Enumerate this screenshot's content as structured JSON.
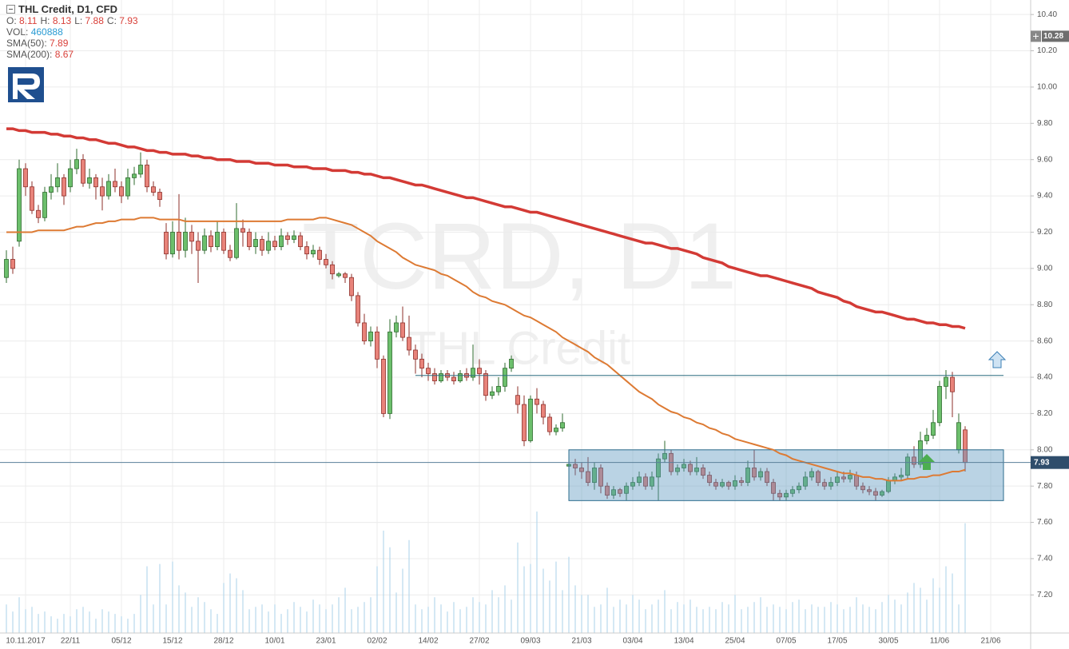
{
  "chart_data": {
    "type": "candlestick",
    "title": "THL Credit,  D1,  CFD",
    "watermark": {
      "symbol": "TCRD, D1",
      "name": "THL Credit"
    },
    "legend": {
      "open": "O:",
      "high": "H:",
      "low": "L:",
      "close": "C:",
      "volume": "VOL:"
    },
    "up_color": "#6cbf6c",
    "down_color": "#e8837a",
    "volume_color": "#a9d2ea",
    "grid": true,
    "ylim": [
      6.99,
      10.48
    ],
    "yticks": [
      {
        "value": 7.2,
        "label": "7.20"
      },
      {
        "value": 7.4,
        "label": "7.40"
      },
      {
        "value": 7.6,
        "label": "7.60"
      },
      {
        "value": 7.8,
        "label": "7.80"
      },
      {
        "value": 8.0,
        "label": "8.00"
      },
      {
        "value": 8.2,
        "label": "8.20"
      },
      {
        "value": 8.4,
        "label": "8.40"
      },
      {
        "value": 8.6,
        "label": "8.60"
      },
      {
        "value": 8.8,
        "label": "8.80"
      },
      {
        "value": 9.0,
        "label": "9.00"
      },
      {
        "value": 9.2,
        "label": "9.20"
      },
      {
        "value": 9.4,
        "label": "9.40"
      },
      {
        "value": 9.6,
        "label": "9.60"
      },
      {
        "value": 9.8,
        "label": "9.80"
      },
      {
        "value": 10.0,
        "label": "10.00"
      },
      {
        "value": 10.2,
        "label": "10.20"
      },
      {
        "value": 10.4,
        "label": "10.40"
      }
    ],
    "crosshair_price": 10.28,
    "resistance": 8.41,
    "range_box": {
      "top": 8.0,
      "bottom": 7.72
    },
    "categories": [
      null,
      null,
      null,
      "10.11.2017",
      null,
      null,
      null,
      null,
      null,
      null,
      "22/11",
      null,
      null,
      null,
      null,
      null,
      null,
      null,
      "05/12",
      null,
      null,
      null,
      null,
      null,
      null,
      null,
      "15/12",
      null,
      null,
      null,
      null,
      null,
      null,
      null,
      "28/12",
      null,
      null,
      null,
      null,
      null,
      null,
      null,
      "10/01",
      null,
      null,
      null,
      null,
      null,
      null,
      null,
      "23/01",
      null,
      null,
      null,
      null,
      null,
      null,
      null,
      "02/02",
      null,
      null,
      null,
      null,
      null,
      null,
      null,
      "14/02",
      null,
      null,
      null,
      null,
      null,
      null,
      null,
      "27/02",
      null,
      null,
      null,
      null,
      null,
      null,
      null,
      "09/03",
      null,
      null,
      null,
      null,
      null,
      null,
      null,
      "21/03",
      null,
      null,
      null,
      null,
      null,
      null,
      null,
      "03/04",
      null,
      null,
      null,
      null,
      null,
      null,
      null,
      "13/04",
      null,
      null,
      null,
      null,
      null,
      null,
      null,
      "25/04",
      null,
      null,
      null,
      null,
      null,
      null,
      null,
      "07/05",
      null,
      null,
      null,
      null,
      null,
      null,
      null,
      "17/05",
      null,
      null,
      null,
      null,
      null,
      null,
      null,
      "30/05",
      null,
      null,
      null,
      null,
      null,
      null,
      null,
      "11/06",
      null,
      null,
      null,
      null,
      null,
      null,
      null,
      "21/06"
    ],
    "open": [
      8.95,
      9.05,
      9.15,
      9.55,
      9.45,
      9.32,
      9.28,
      9.42,
      9.45,
      9.5,
      9.45,
      9.55,
      9.6,
      9.47,
      9.5,
      9.45,
      9.4,
      9.48,
      9.45,
      9.4,
      9.5,
      9.52,
      9.57,
      9.45,
      9.42,
      9.2,
      9.08,
      9.2,
      9.1,
      9.2,
      9.15,
      9.1,
      9.18,
      9.12,
      9.2,
      9.1,
      9.06,
      9.22,
      9.2,
      9.12,
      9.16,
      9.1,
      9.15,
      9.12,
      9.18,
      9.16,
      9.18,
      9.12,
      9.08,
      9.1,
      9.05,
      9.02,
      8.96,
      8.97,
      8.95,
      8.85,
      8.7,
      8.6,
      8.65,
      8.5,
      8.2,
      8.65,
      8.7,
      8.62,
      8.55,
      8.5,
      8.45,
      8.42,
      8.38,
      8.42,
      8.4,
      8.38,
      8.42,
      8.4,
      8.45,
      8.42,
      8.3,
      8.32,
      8.35,
      8.45,
      8.3,
      8.25,
      8.05,
      8.28,
      8.25,
      8.18,
      8.1,
      8.12,
      7.91,
      7.92,
      7.9,
      7.88,
      7.82,
      7.9,
      7.8,
      7.75,
      7.78,
      7.76,
      7.8,
      7.82,
      7.85,
      7.8,
      7.85,
      7.95,
      7.98,
      7.88,
      7.9,
      7.92,
      7.88,
      7.9,
      7.86,
      7.82,
      7.8,
      7.82,
      7.8,
      7.83,
      7.82,
      7.9,
      7.85,
      7.88,
      7.82,
      7.76,
      7.74,
      7.76,
      7.78,
      7.8,
      7.85,
      7.88,
      7.82,
      7.8,
      7.82,
      7.85,
      7.84,
      7.86,
      7.8,
      7.78,
      7.77,
      7.75,
      7.77,
      7.83,
      7.85,
      7.86,
      7.96,
      7.92,
      8.05,
      8.08,
      8.15,
      8.35,
      8.4,
      8.0,
      8.11,
      null,
      null,
      null,
      null
    ],
    "high": [
      9.1,
      9.12,
      9.6,
      9.58,
      9.48,
      9.35,
      9.45,
      9.52,
      9.58,
      9.52,
      9.6,
      9.66,
      9.63,
      9.55,
      9.52,
      9.5,
      9.52,
      9.55,
      9.48,
      9.55,
      9.56,
      9.64,
      9.6,
      9.48,
      9.44,
      9.25,
      9.26,
      9.41,
      9.28,
      9.24,
      9.2,
      9.22,
      9.21,
      9.26,
      9.22,
      9.13,
      9.36,
      9.27,
      9.22,
      9.2,
      9.18,
      9.2,
      9.18,
      9.22,
      9.2,
      9.21,
      9.2,
      9.15,
      9.13,
      9.12,
      9.08,
      9.04,
      8.98,
      8.98,
      8.97,
      8.87,
      8.75,
      8.68,
      8.68,
      8.52,
      8.72,
      8.74,
      8.79,
      8.74,
      8.58,
      8.53,
      8.48,
      8.45,
      8.44,
      8.44,
      8.43,
      8.44,
      8.45,
      8.58,
      8.5,
      8.44,
      8.35,
      8.4,
      8.48,
      8.52,
      8.35,
      8.3,
      8.3,
      8.34,
      8.27,
      8.2,
      8.14,
      8.2,
      7.93,
      7.95,
      7.93,
      7.96,
      7.93,
      7.92,
      7.82,
      7.8,
      7.79,
      7.82,
      7.85,
      7.88,
      7.87,
      7.88,
      7.98,
      8.05,
      8.0,
      7.92,
      7.95,
      7.94,
      7.96,
      7.92,
      7.88,
      7.84,
      7.84,
      7.83,
      7.86,
      7.85,
      7.94,
      8.0,
      7.9,
      7.9,
      7.84,
      7.78,
      7.78,
      7.8,
      7.82,
      7.88,
      7.9,
      7.89,
      7.84,
      7.85,
      7.88,
      7.88,
      7.89,
      7.88,
      7.82,
      7.8,
      7.79,
      7.78,
      7.85,
      7.87,
      7.9,
      7.98,
      8.02,
      8.1,
      8.12,
      8.22,
      8.38,
      8.44,
      8.43,
      8.2,
      8.13,
      null,
      null,
      null,
      null
    ],
    "low": [
      8.92,
      8.97,
      9.12,
      9.4,
      9.3,
      9.25,
      9.26,
      9.38,
      9.42,
      9.35,
      9.42,
      9.52,
      9.45,
      9.44,
      9.38,
      9.32,
      9.38,
      9.42,
      9.36,
      9.38,
      9.46,
      9.5,
      9.42,
      9.4,
      9.34,
      9.05,
      9.06,
      9.05,
      9.06,
      9.08,
      8.92,
      9.08,
      9.09,
      9.1,
      9.08,
      9.04,
      9.05,
      9.12,
      9.1,
      9.08,
      9.07,
      9.08,
      9.1,
      9.1,
      9.13,
      9.14,
      9.1,
      9.05,
      9.06,
      9.02,
      9.0,
      8.94,
      8.95,
      8.92,
      8.82,
      8.68,
      8.58,
      8.57,
      8.45,
      8.18,
      8.17,
      8.62,
      8.6,
      8.52,
      8.42,
      8.4,
      8.38,
      8.36,
      8.37,
      8.38,
      8.36,
      8.37,
      8.38,
      8.38,
      8.36,
      8.27,
      8.28,
      8.3,
      8.32,
      8.43,
      8.2,
      8.02,
      8.04,
      8.2,
      8.14,
      8.08,
      8.08,
      8.1,
      7.9,
      7.86,
      7.84,
      7.8,
      7.78,
      7.76,
      7.73,
      7.73,
      7.74,
      7.72,
      7.78,
      7.8,
      7.78,
      7.78,
      7.72,
      7.93,
      7.86,
      7.86,
      7.88,
      7.86,
      7.86,
      7.84,
      7.8,
      7.78,
      7.79,
      7.78,
      7.78,
      7.8,
      7.8,
      7.83,
      7.83,
      7.8,
      7.72,
      7.72,
      7.72,
      7.74,
      7.76,
      7.78,
      7.83,
      7.8,
      7.78,
      7.78,
      7.8,
      7.82,
      7.82,
      7.78,
      7.76,
      7.75,
      7.72,
      7.74,
      7.76,
      7.81,
      7.83,
      7.84,
      7.9,
      7.9,
      8.03,
      8.06,
      8.13,
      8.28,
      8.18,
      7.98,
      7.88,
      null,
      null,
      null,
      null
    ],
    "close": [
      9.05,
      9.0,
      9.55,
      9.45,
      9.32,
      9.28,
      9.42,
      9.45,
      9.5,
      9.4,
      9.55,
      9.6,
      9.47,
      9.5,
      9.45,
      9.4,
      9.48,
      9.45,
      9.4,
      9.5,
      9.52,
      9.57,
      9.45,
      9.42,
      9.38,
      9.08,
      9.2,
      9.1,
      9.2,
      9.15,
      9.1,
      9.18,
      9.12,
      9.2,
      9.1,
      9.06,
      9.22,
      9.2,
      9.12,
      9.16,
      9.1,
      9.15,
      9.12,
      9.18,
      9.16,
      9.18,
      9.12,
      9.08,
      9.1,
      9.05,
      9.02,
      8.97,
      8.97,
      8.95,
      8.85,
      8.7,
      8.6,
      8.65,
      8.5,
      8.2,
      8.65,
      8.7,
      8.62,
      8.55,
      8.5,
      8.45,
      8.42,
      8.38,
      8.42,
      8.4,
      8.38,
      8.42,
      8.4,
      8.45,
      8.42,
      8.3,
      8.32,
      8.35,
      8.45,
      8.5,
      8.25,
      8.05,
      8.28,
      8.25,
      8.18,
      8.1,
      8.12,
      8.15,
      7.92,
      7.9,
      7.88,
      7.82,
      7.9,
      7.8,
      7.75,
      7.78,
      7.76,
      7.8,
      7.82,
      7.85,
      7.8,
      7.85,
      7.95,
      7.98,
      7.88,
      7.9,
      7.92,
      7.88,
      7.9,
      7.86,
      7.82,
      7.8,
      7.82,
      7.8,
      7.83,
      7.82,
      7.9,
      7.85,
      7.88,
      7.82,
      7.76,
      7.74,
      7.76,
      7.78,
      7.8,
      7.85,
      7.88,
      7.82,
      7.8,
      7.82,
      7.85,
      7.84,
      7.86,
      7.8,
      7.78,
      7.77,
      7.75,
      7.77,
      7.83,
      7.85,
      7.86,
      7.96,
      7.92,
      8.05,
      8.08,
      8.15,
      8.35,
      8.4,
      8.32,
      8.15,
      7.93,
      null,
      null,
      null,
      null
    ],
    "volume": [
      120000,
      90000,
      150000,
      100000,
      110000,
      80000,
      90000,
      70000,
      60000,
      80000,
      70000,
      100000,
      110000,
      90000,
      60000,
      100000,
      90000,
      80000,
      70000,
      60000,
      80000,
      160000,
      280000,
      120000,
      290000,
      120000,
      300000,
      200000,
      170000,
      110000,
      150000,
      130000,
      100000,
      80000,
      210000,
      250000,
      230000,
      180000,
      100000,
      110000,
      120000,
      90000,
      120000,
      80000,
      100000,
      130000,
      110000,
      90000,
      140000,
      120000,
      100000,
      120000,
      150000,
      190000,
      100000,
      110000,
      130000,
      150000,
      280000,
      430000,
      360000,
      170000,
      270000,
      390000,
      120000,
      100000,
      110000,
      150000,
      120000,
      90000,
      130000,
      100000,
      110000,
      150000,
      130000,
      120000,
      180000,
      150000,
      200000,
      140000,
      380000,
      280000,
      290000,
      510000,
      270000,
      220000,
      300000,
      180000,
      320000,
      200000,
      160000,
      160000,
      110000,
      120000,
      190000,
      110000,
      140000,
      120000,
      160000,
      140000,
      100000,
      120000,
      140000,
      180000,
      100000,
      130000,
      120000,
      140000,
      110000,
      100000,
      110000,
      100000,
      130000,
      120000,
      160000,
      100000,
      110000,
      130000,
      150000,
      110000,
      120000,
      110000,
      100000,
      130000,
      140000,
      100000,
      120000,
      110000,
      110000,
      130000,
      120000,
      100000,
      110000,
      150000,
      120000,
      110000,
      100000,
      130000,
      160000,
      140000,
      120000,
      170000,
      210000,
      190000,
      140000,
      230000,
      190000,
      280000,
      250000,
      120000,
      460888,
      null,
      null,
      null,
      null
    ],
    "series": [
      {
        "label": "SMA(50):",
        "color": "#dd7a33",
        "width": 2,
        "values": [
          9.2,
          9.2,
          9.2,
          9.2,
          9.2,
          9.21,
          9.21,
          9.21,
          9.21,
          9.21,
          9.22,
          9.23,
          9.23,
          9.24,
          9.25,
          9.25,
          9.26,
          9.26,
          9.27,
          9.27,
          9.27,
          9.28,
          9.28,
          9.28,
          9.27,
          9.27,
          9.27,
          9.27,
          9.26,
          9.26,
          9.26,
          9.26,
          9.26,
          9.26,
          9.26,
          9.26,
          9.26,
          9.26,
          9.26,
          9.26,
          9.26,
          9.26,
          9.26,
          9.26,
          9.27,
          9.27,
          9.27,
          9.27,
          9.27,
          9.28,
          9.28,
          9.27,
          9.26,
          9.25,
          9.24,
          9.22,
          9.2,
          9.18,
          9.15,
          9.13,
          9.11,
          9.09,
          9.06,
          9.04,
          9.02,
          9.01,
          9.0,
          8.99,
          8.97,
          8.96,
          8.94,
          8.92,
          8.9,
          8.87,
          8.85,
          8.84,
          8.82,
          8.81,
          8.8,
          8.78,
          8.76,
          8.74,
          8.73,
          8.71,
          8.69,
          8.67,
          8.65,
          8.62,
          8.6,
          8.58,
          8.56,
          8.54,
          8.51,
          8.49,
          8.47,
          8.44,
          8.41,
          8.38,
          8.35,
          8.32,
          8.3,
          8.28,
          8.25,
          8.23,
          8.21,
          8.2,
          8.18,
          8.17,
          8.15,
          8.14,
          8.12,
          8.11,
          8.09,
          8.08,
          8.06,
          8.05,
          8.04,
          8.03,
          8.02,
          8.01,
          8.0,
          7.98,
          7.97,
          7.95,
          7.94,
          7.93,
          7.92,
          7.91,
          7.9,
          7.89,
          7.88,
          7.87,
          7.87,
          7.86,
          7.85,
          7.85,
          7.84,
          7.84,
          7.83,
          7.83,
          7.83,
          7.84,
          7.84,
          7.85,
          7.85,
          7.86,
          7.86,
          7.87,
          7.88,
          7.88,
          7.89,
          null,
          null,
          null,
          null
        ]
      },
      {
        "label": "SMA(200):",
        "color": "#d33a35",
        "width": 3.5,
        "values": [
          9.77,
          9.77,
          9.76,
          9.76,
          9.75,
          9.75,
          9.75,
          9.74,
          9.74,
          9.73,
          9.73,
          9.72,
          9.72,
          9.71,
          9.71,
          9.7,
          9.69,
          9.69,
          9.68,
          9.67,
          9.67,
          9.66,
          9.65,
          9.65,
          9.64,
          9.64,
          9.63,
          9.63,
          9.63,
          9.62,
          9.62,
          9.61,
          9.61,
          9.6,
          9.6,
          9.6,
          9.59,
          9.59,
          9.59,
          9.58,
          9.58,
          9.58,
          9.57,
          9.57,
          9.57,
          9.56,
          9.56,
          9.56,
          9.55,
          9.55,
          9.55,
          9.54,
          9.54,
          9.54,
          9.53,
          9.53,
          9.52,
          9.52,
          9.51,
          9.5,
          9.5,
          9.49,
          9.48,
          9.47,
          9.46,
          9.46,
          9.45,
          9.44,
          9.43,
          9.42,
          9.41,
          9.4,
          9.39,
          9.39,
          9.38,
          9.37,
          9.36,
          9.35,
          9.34,
          9.34,
          9.33,
          9.32,
          9.31,
          9.31,
          9.3,
          9.29,
          9.28,
          9.27,
          9.26,
          9.25,
          9.24,
          9.23,
          9.22,
          9.21,
          9.2,
          9.19,
          9.18,
          9.17,
          9.16,
          9.15,
          9.14,
          9.14,
          9.13,
          9.12,
          9.11,
          9.11,
          9.1,
          9.09,
          9.08,
          9.06,
          9.05,
          9.04,
          9.03,
          9.01,
          9.0,
          8.99,
          8.98,
          8.97,
          8.96,
          8.96,
          8.95,
          8.94,
          8.93,
          8.92,
          8.91,
          8.9,
          8.89,
          8.87,
          8.86,
          8.85,
          8.84,
          8.82,
          8.81,
          8.79,
          8.78,
          8.77,
          8.76,
          8.76,
          8.75,
          8.74,
          8.73,
          8.72,
          8.72,
          8.71,
          8.7,
          8.7,
          8.69,
          8.69,
          8.68,
          8.68,
          8.67,
          null,
          null,
          null,
          null
        ]
      }
    ]
  }
}
